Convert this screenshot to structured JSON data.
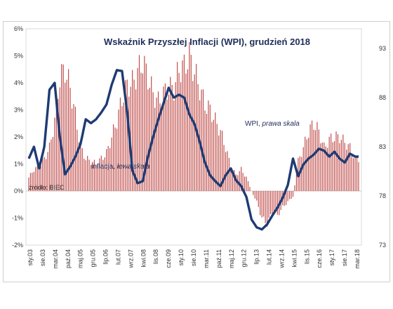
{
  "chart_data": {
    "type": "bar+line",
    "title": "Wskaźnik Przyszłej Inflacji (WPI), grudzień 2018",
    "source": "źródło: BIEC",
    "colors": {
      "bars": "#c0504d",
      "line": "#1f3b73",
      "grid": "#d9d9d9"
    },
    "grid": false,
    "left_axis": {
      "ticks": [
        "6%",
        "5%",
        "4%",
        "3%",
        "2%",
        "1%",
        "0%",
        "-1%",
        "-2%"
      ],
      "ylim": [
        -2,
        6
      ],
      "unit": "%"
    },
    "right_axis": {
      "ticks": [
        "93",
        "88",
        "83",
        "78",
        "73"
      ],
      "ylim": [
        73,
        95
      ]
    },
    "x_ticks": [
      "sty.03",
      "sie.03",
      "mar.04",
      "paź.04",
      "maj.05",
      "gru.05",
      "lip.06",
      "lut.07",
      "wrz.07",
      "kwi.08",
      "lis.08",
      "cze.09",
      "sty.10",
      "sie.10",
      "mar.11",
      "paź.11",
      "maj.12",
      "gru.12",
      "lip.13",
      "lut.14",
      "wrz.14",
      "kwi.15",
      "lis.15",
      "cze.16",
      "sty.17",
      "sie.17",
      "mar.18"
    ],
    "x_start": "2003-01",
    "x_end": "2018-12",
    "series": [
      {
        "name": "inflacja, lewa skala",
        "axis": "left",
        "kind": "bar",
        "values_by_quarter": [
          0.5,
          0.8,
          0.9,
          1.2,
          1.6,
          2.6,
          4.2,
          4.5,
          3.8,
          2.8,
          1.6,
          1.2,
          1.1,
          1.0,
          1.2,
          1.4,
          2.0,
          2.6,
          3.4,
          3.9,
          4.0,
          4.4,
          4.8,
          4.2,
          3.6,
          3.3,
          3.6,
          3.8,
          3.8,
          4.5,
          4.6,
          5.0,
          4.4,
          3.8,
          3.2,
          3.0,
          2.6,
          2.2,
          1.6,
          0.9,
          0.6,
          0.8,
          0.5,
          0.0,
          -0.4,
          -1.0,
          -1.2,
          -0.8,
          -0.9,
          -0.6,
          -0.4,
          -0.2,
          1.1,
          1.6,
          2.2,
          2.5,
          2.2,
          1.6,
          1.9,
          2.0,
          2.0,
          1.8,
          1.6,
          1.2
        ]
      },
      {
        "name": "WPI, prawa skala",
        "axis": "right",
        "kind": "line",
        "values_by_quarter": [
          81.8,
          83.0,
          80.8,
          83.0,
          88.8,
          89.5,
          84.0,
          80.2,
          81.0,
          82.0,
          83.3,
          85.8,
          85.4,
          85.8,
          86.5,
          87.3,
          89.3,
          90.8,
          90.7,
          86.5,
          80.6,
          79.3,
          79.5,
          82.0,
          84.0,
          85.8,
          87.4,
          89.0,
          88.0,
          88.3,
          88.0,
          86.3,
          85.3,
          83.5,
          81.4,
          80.1,
          79.5,
          79.0,
          80.1,
          80.8,
          79.6,
          79.0,
          77.9,
          75.6,
          74.8,
          74.6,
          75.1,
          76.0,
          76.8,
          77.8,
          79.1,
          81.8,
          80.0,
          81.2,
          81.8,
          82.2,
          82.8,
          82.6,
          82.0,
          82.5,
          81.8,
          81.4,
          82.3,
          82.0
        ]
      }
    ],
    "annotations": [
      {
        "text_main": "inflacja, ",
        "text_italic": "lewa skala"
      },
      {
        "text_main": "WPI, ",
        "text_italic": "prawa skala"
      }
    ]
  }
}
